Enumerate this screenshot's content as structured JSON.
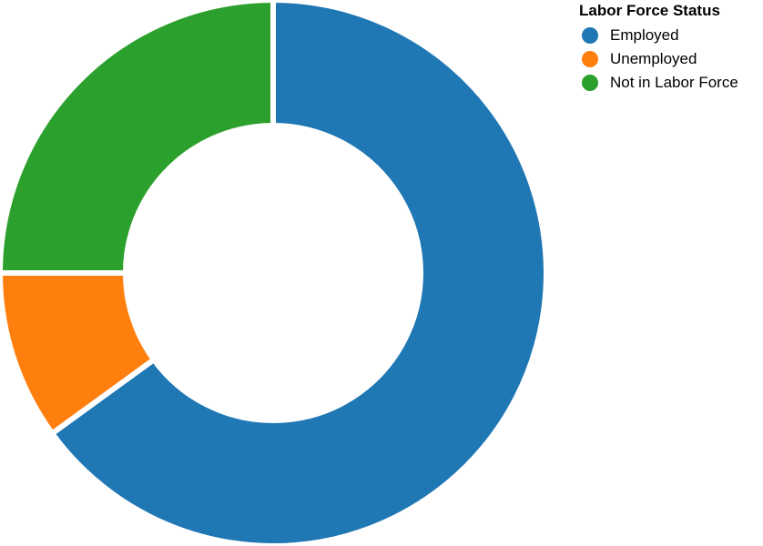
{
  "chart_data": {
    "type": "pie",
    "variant": "donut",
    "title": "",
    "legend": {
      "title": "Labor Force Status",
      "placement": "top-right"
    },
    "slices": [
      {
        "label": "Employed",
        "value": 65,
        "color": "#1f77b4"
      },
      {
        "label": "Unemployed",
        "value": 10,
        "color": "#ff7f0e"
      },
      {
        "label": "Not in Labor Force",
        "value": 25,
        "color": "#2ca02c"
      }
    ]
  }
}
